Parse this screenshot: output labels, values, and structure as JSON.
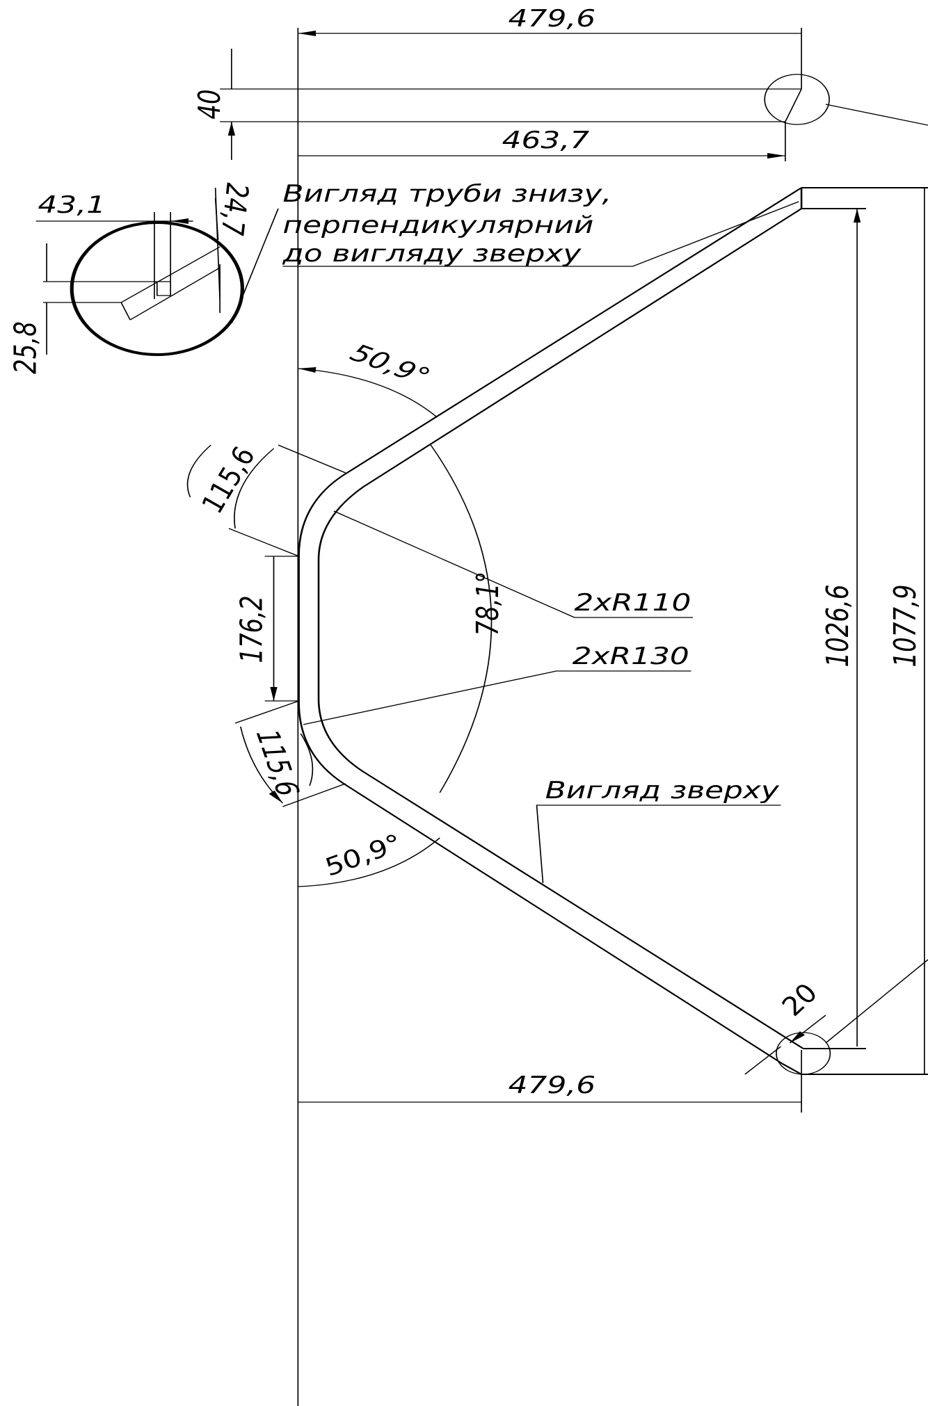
{
  "dimensions": {
    "top_length": "479,6",
    "tube_width": "40",
    "inner_length": "463,7",
    "detail_width": "43,1",
    "detail_offset": "24,7",
    "detail_height": "25,8",
    "angle_top": "50,9°",
    "arc_top": "115,6",
    "straight": "176,2",
    "angle_middle": "78,1°",
    "radius_inner": "2xR110",
    "radius_outer": "2xR130",
    "arc_bottom": "115,6",
    "angle_bottom": "50,9°",
    "height_inner": "1026,6",
    "height_outer": "1077,9",
    "diameter": "20",
    "bottom_length": "479,6"
  },
  "notes": {
    "bottom_view": [
      "Вигляд труби знизу,",
      "перпендикулярний",
      "до вигляду зверху"
    ],
    "top_view": "Вигляд зверху"
  }
}
